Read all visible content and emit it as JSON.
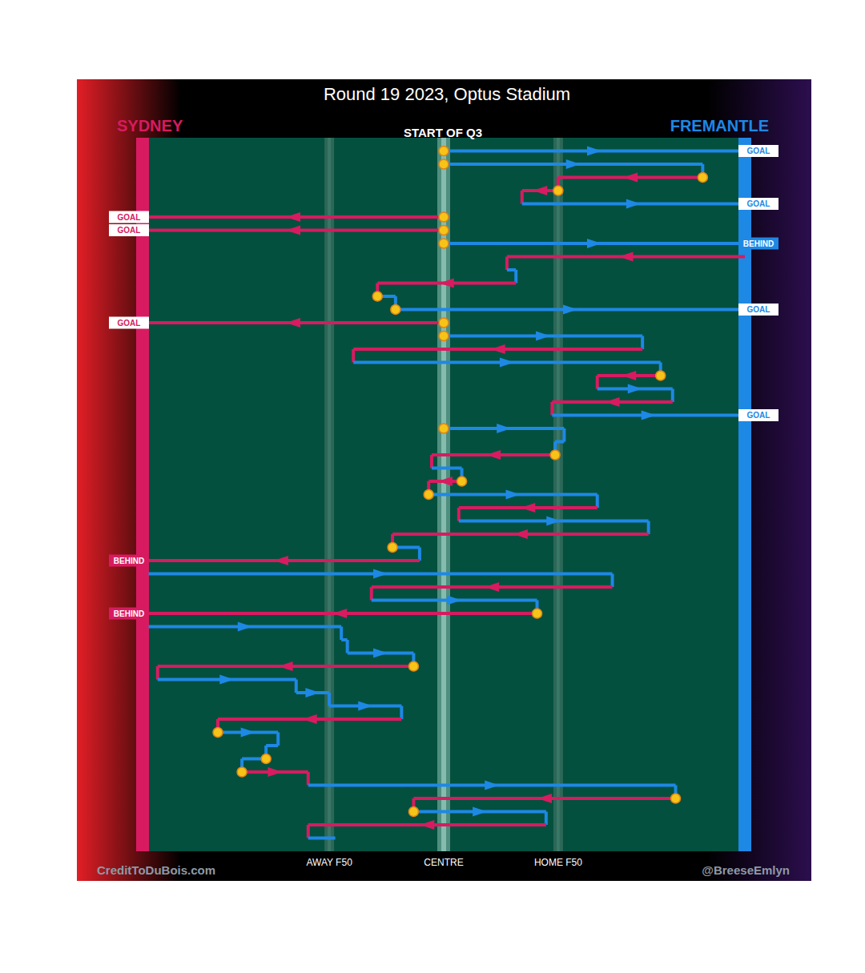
{
  "chart_data": {
    "type": "possession_chain",
    "title": "Round 19 2023, Optus Stadium",
    "subtitle": "START OF Q3",
    "annotations": [
      "CreditToDuBois.com",
      "@BreeseEmlyn"
    ],
    "series": [
      {
        "name": "SYDNEY",
        "color": "#d81b60"
      },
      {
        "name": "FREMANTLE",
        "color": "#1e88e5"
      }
    ],
    "xlim": [
      0,
      100
    ],
    "xticks": [
      {
        "value": 31,
        "label": "AWAY F50"
      },
      {
        "value": 50,
        "label": "CENTRE"
      },
      {
        "value": 69,
        "label": "HOME F50"
      }
    ],
    "ylim": [
      0,
      54
    ],
    "tick_labels": "x",
    "grid": false,
    "possessions": [
      {
        "row": 1,
        "team": "FREMANTLE",
        "from": 50,
        "to": 100,
        "marker": "circle",
        "outcome": "GOAL"
      },
      {
        "row": 2,
        "team": "FREMANTLE",
        "from": 50,
        "to": 93,
        "marker": "circle"
      },
      {
        "row": 3,
        "team": "SYDNEY",
        "from": 93,
        "to": 69,
        "marker": "circle"
      },
      {
        "row": 4,
        "team": "SYDNEY",
        "from": 69,
        "to": 63,
        "marker": "circle"
      },
      {
        "row": 5,
        "team": "FREMANTLE",
        "from": 63,
        "to": 100,
        "outcome": "GOAL"
      },
      {
        "row": 6,
        "team": "SYDNEY",
        "from": 50,
        "to": 0,
        "marker": "circle",
        "outcome": "GOAL"
      },
      {
        "row": 7,
        "team": "SYDNEY",
        "from": 50,
        "to": 0,
        "marker": "circle",
        "outcome": "GOAL"
      },
      {
        "row": 8,
        "team": "FREMANTLE",
        "from": 50,
        "to": 100,
        "marker": "circle",
        "outcome": "BEHIND"
      },
      {
        "row": 9,
        "team": "SYDNEY",
        "from": 100,
        "to": 60.5
      },
      {
        "row": 10,
        "team": "FREMANTLE",
        "from": 60.5,
        "to": 62
      },
      {
        "row": 11,
        "team": "SYDNEY",
        "from": 62,
        "to": 39
      },
      {
        "row": 12,
        "team": "FREMANTLE",
        "from": 39,
        "to": 42,
        "marker": "circle"
      },
      {
        "row": 13,
        "team": "FREMANTLE",
        "from": 42,
        "to": 100,
        "marker": "circle",
        "outcome": "GOAL"
      },
      {
        "row": 14,
        "team": "SYDNEY",
        "from": 50,
        "to": 0,
        "marker": "circle",
        "outcome": "GOAL"
      },
      {
        "row": 15,
        "team": "FREMANTLE",
        "from": 50,
        "to": 83,
        "marker": "circle"
      },
      {
        "row": 16,
        "team": "SYDNEY",
        "from": 83,
        "to": 35
      },
      {
        "row": 17,
        "team": "FREMANTLE",
        "from": 35,
        "to": 86
      },
      {
        "row": 18,
        "team": "SYDNEY",
        "from": 86,
        "to": 75.5,
        "marker": "circle"
      },
      {
        "row": 19,
        "team": "FREMANTLE",
        "from": 75.5,
        "to": 88
      },
      {
        "row": 20,
        "team": "SYDNEY",
        "from": 88,
        "to": 68
      },
      {
        "row": 21,
        "team": "FREMANTLE",
        "from": 68,
        "to": 100,
        "outcome": "GOAL"
      },
      {
        "row": 22,
        "team": "FREMANTLE",
        "from": 50,
        "to": 70,
        "marker": "circle"
      },
      {
        "row": 23,
        "team": "FREMANTLE",
        "from": 70,
        "to": 68.5
      },
      {
        "row": 24,
        "team": "SYDNEY",
        "from": 68.5,
        "to": 48,
        "marker": "circle"
      },
      {
        "row": 25,
        "team": "FREMANTLE",
        "from": 48,
        "to": 53
      },
      {
        "row": 26,
        "team": "SYDNEY",
        "from": 53,
        "to": 47.5,
        "marker": "circle"
      },
      {
        "row": 27,
        "team": "FREMANTLE",
        "from": 47.5,
        "to": 75.5,
        "marker": "circle"
      },
      {
        "row": 28,
        "team": "SYDNEY",
        "from": 75.5,
        "to": 52.5
      },
      {
        "row": 29,
        "team": "FREMANTLE",
        "from": 52.5,
        "to": 84
      },
      {
        "row": 30,
        "team": "SYDNEY",
        "from": 84,
        "to": 41.5
      },
      {
        "row": 31,
        "team": "FREMANTLE",
        "from": 41.5,
        "to": 46,
        "marker": "circle"
      },
      {
        "row": 32,
        "team": "SYDNEY",
        "from": 46,
        "to": 0,
        "outcome": "BEHIND"
      },
      {
        "row": 33,
        "team": "FREMANTLE",
        "from": 1,
        "to": 78
      },
      {
        "row": 34,
        "team": "SYDNEY",
        "from": 78,
        "to": 38
      },
      {
        "row": 35,
        "team": "FREMANTLE",
        "from": 38,
        "to": 65.5
      },
      {
        "row": 36,
        "team": "SYDNEY",
        "from": 65.5,
        "to": 0,
        "marker": "circle",
        "outcome": "BEHIND"
      },
      {
        "row": 37,
        "team": "FREMANTLE",
        "from": 1,
        "to": 33
      },
      {
        "row": 38,
        "team": "FREMANTLE",
        "from": 33,
        "to": 34
      },
      {
        "row": 39,
        "team": "FREMANTLE",
        "from": 34,
        "to": 45
      },
      {
        "row": 40,
        "team": "SYDNEY",
        "from": 45,
        "to": 2.5,
        "marker": "circle"
      },
      {
        "row": 41,
        "team": "FREMANTLE",
        "from": 2.5,
        "to": 25.5
      },
      {
        "row": 42,
        "team": "FREMANTLE",
        "from": 25.5,
        "to": 31
      },
      {
        "row": 43,
        "team": "FREMANTLE",
        "from": 31,
        "to": 43
      },
      {
        "row": 44,
        "team": "SYDNEY",
        "from": 43,
        "to": 12.5
      },
      {
        "row": 45,
        "team": "FREMANTLE",
        "from": 12.5,
        "to": 22.5,
        "marker": "circle"
      },
      {
        "row": 46,
        "team": "FREMANTLE",
        "from": 22.5,
        "to": 20.5
      },
      {
        "row": 47,
        "team": "FREMANTLE",
        "from": 20.5,
        "to": 16.5,
        "marker": "circle"
      },
      {
        "row": 48,
        "team": "SYDNEY",
        "from": 16.5,
        "to": 27.5,
        "marker": "circle"
      },
      {
        "row": 49,
        "team": "FREMANTLE",
        "from": 27.5,
        "to": 88.5
      },
      {
        "row": 50,
        "team": "SYDNEY",
        "from": 88.5,
        "to": 45,
        "marker": "circle"
      },
      {
        "row": 51,
        "team": "FREMANTLE",
        "from": 45,
        "to": 67,
        "marker": "circle"
      },
      {
        "row": 52,
        "team": "SYDNEY",
        "from": 67,
        "to": 27.5
      },
      {
        "row": 53,
        "team": "FREMANTLE",
        "from": 27.5,
        "to": 32
      }
    ]
  }
}
